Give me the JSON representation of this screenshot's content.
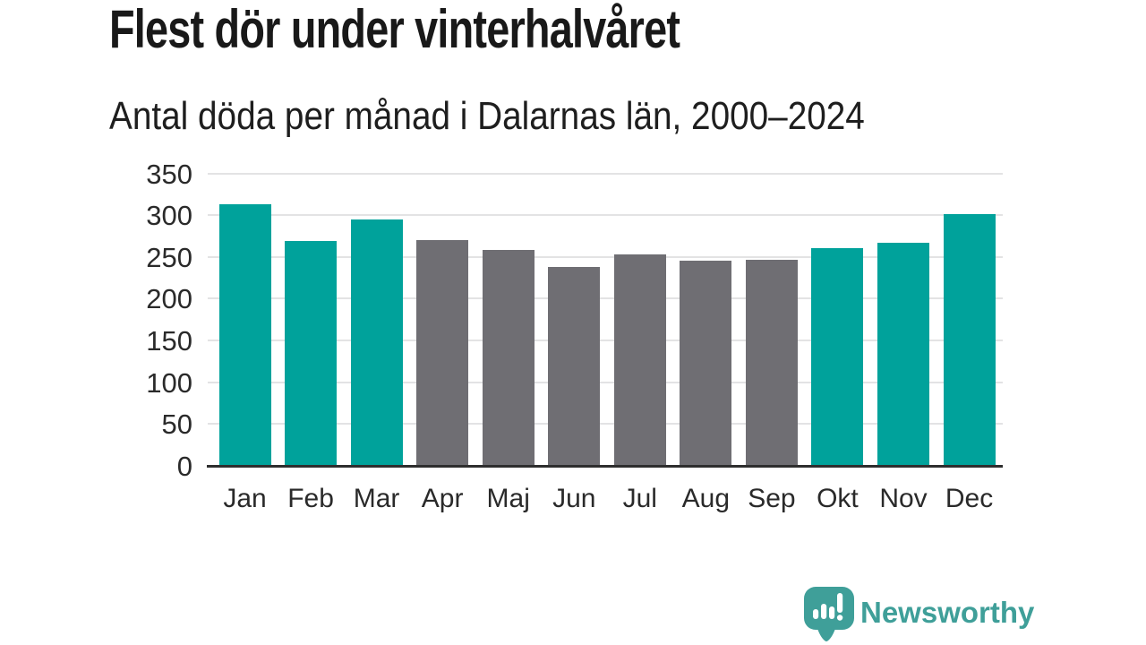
{
  "page": {
    "title": "Flest dör under vinterhalvåret",
    "subtitle": "Antal döda per månad i Dalarnas län, 2000–2024"
  },
  "branding": {
    "wordmark": "Newsworthy",
    "logo_icon": "bar-chart-speech-bubble-icon",
    "brand_color": "#3f9f99"
  },
  "chart_data": {
    "type": "bar",
    "title": "Flest dör under vinterhalvåret",
    "subtitle": "Antal döda per månad i Dalarnas län, 2000–2024",
    "categories": [
      "Jan",
      "Feb",
      "Mar",
      "Apr",
      "Maj",
      "Jun",
      "Jul",
      "Aug",
      "Sep",
      "Okt",
      "Nov",
      "Dec"
    ],
    "series": [
      {
        "name": "Antal döda per månad",
        "values": [
          313,
          269,
          295,
          270,
          258,
          238,
          253,
          245,
          247,
          261,
          267,
          301
        ]
      }
    ],
    "bar_color_keys": [
      "winter",
      "winter",
      "winter",
      "summer",
      "summer",
      "summer",
      "summer",
      "summer",
      "summer",
      "winter",
      "winter",
      "winter"
    ],
    "colors": {
      "winter": "#00a29b",
      "summer": "#6f6e73"
    },
    "xlabel": "",
    "ylabel": "",
    "ylim": [
      0,
      350
    ],
    "yticks": [
      0,
      50,
      100,
      150,
      200,
      250,
      300,
      350
    ],
    "grid": true,
    "legend": false,
    "gridline_color": "#e3e3e4",
    "axis_line_color": "#2e2e2e"
  }
}
